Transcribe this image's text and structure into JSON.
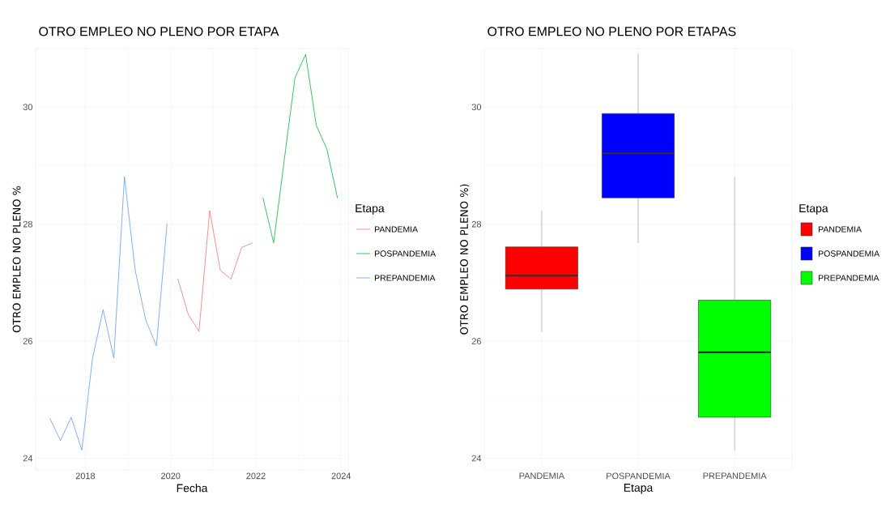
{
  "chart_data": [
    {
      "type": "line",
      "title": "OTRO EMPLEO NO PLENO POR ETAPA",
      "xlabel": "Fecha",
      "ylabel": "OTRO EMPLEO NO PLENO %",
      "legend_title": "Etapa",
      "legend": "right",
      "grid": true,
      "xlim": [
        "2016-11",
        "2024-03"
      ],
      "xticks": [
        "2018",
        "2020",
        "2022",
        "2024"
      ],
      "ylim": [
        23.8,
        31.0
      ],
      "yticks": [
        24,
        26,
        28,
        30
      ],
      "series": [
        {
          "name": "PANDEMIA",
          "color": "#f8766d",
          "x": [
            "2020-03",
            "2020-06",
            "2020-09",
            "2020-12",
            "2021-03",
            "2021-06",
            "2021-09",
            "2021-12"
          ],
          "values": [
            27.07,
            26.45,
            26.17,
            28.23,
            27.21,
            27.06,
            27.6,
            27.68
          ]
        },
        {
          "name": "POSPANDEMIA",
          "color": "#00ba38",
          "x": [
            "2022-03",
            "2022-06",
            "2022-09",
            "2022-12",
            "2023-03",
            "2023-06",
            "2023-09",
            "2023-12"
          ],
          "values": [
            28.45,
            27.68,
            29.1,
            30.5,
            30.9,
            29.69,
            29.28,
            28.44
          ]
        },
        {
          "name": "PREPANDEMIA",
          "color": "#619cff",
          "x": [
            "2017-03",
            "2017-06",
            "2017-09",
            "2017-12",
            "2018-03",
            "2018-06",
            "2018-09",
            "2018-12",
            "2019-03",
            "2019-06",
            "2019-09",
            "2019-12"
          ],
          "values": [
            24.68,
            24.3,
            24.7,
            24.14,
            25.7,
            26.54,
            25.71,
            28.81,
            27.22,
            26.36,
            25.92,
            28.01
          ]
        }
      ]
    },
    {
      "type": "box",
      "title": "OTRO EMPLEO NO PLENO POR ETAPAS",
      "xlabel": "Etapa",
      "ylabel": "OTRO EMPLEO NO PLENO %)",
      "legend_title": "Etapa",
      "legend": "right",
      "grid": true,
      "ylim": [
        23.8,
        31.0
      ],
      "yticks": [
        24,
        26,
        28,
        30
      ],
      "categories": [
        "PANDEMIA",
        "POSPANDEMIA",
        "PREPANDEMIA"
      ],
      "series": [
        {
          "name": "PANDEMIA",
          "color": "#ff0000",
          "boxes": [
            {
              "low": 26.16,
              "q1": 26.89,
              "median": 27.12,
              "q3": 27.61,
              "high": 28.23
            },
            null,
            null
          ]
        },
        {
          "name": "POSPANDEMIA",
          "color": "#0000ff",
          "boxes": [
            null,
            {
              "low": 27.68,
              "q1": 28.45,
              "median": 29.21,
              "q3": 29.89,
              "high": 30.91
            },
            null
          ]
        },
        {
          "name": "PREPANDEMIA",
          "color": "#00ff00",
          "boxes": [
            null,
            null,
            {
              "low": 24.13,
              "q1": 24.7,
              "median": 25.81,
              "q3": 26.7,
              "high": 28.81
            }
          ]
        }
      ]
    }
  ]
}
